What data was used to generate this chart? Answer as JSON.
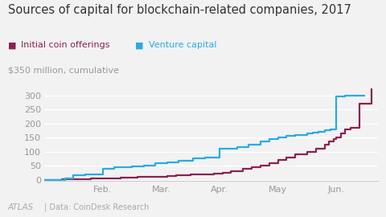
{
  "title": "Sources of capital for blockchain-related companies, 2017",
  "ylabel": "$350 million, cumulative",
  "legend_ico": "Initial coin offerings",
  "legend_vc": "Venture capital",
  "footer": "Data: CoinDesk Research",
  "atlas_label": "ATLAS",
  "ico_color": "#8B2252",
  "vc_color": "#29ABE2",
  "background_color": "#f2f2f2",
  "title_fontsize": 10.5,
  "ylim": [
    -5,
    350
  ],
  "yticks": [
    0,
    50,
    100,
    150,
    200,
    250,
    300
  ],
  "xtick_labels": [
    "Feb.",
    "Mar.",
    "Apr.",
    "May",
    "Jun."
  ],
  "ico_x": [
    1.0,
    1.3,
    1.55,
    1.8,
    2.0,
    2.3,
    2.6,
    2.9,
    3.1,
    3.25,
    3.5,
    3.7,
    3.9,
    4.05,
    4.2,
    4.4,
    4.55,
    4.7,
    4.85,
    5.0,
    5.15,
    5.3,
    5.5,
    5.65,
    5.8,
    5.88,
    5.95,
    6.0,
    6.08,
    6.15,
    6.25,
    6.4,
    6.6
  ],
  "ico_y": [
    0,
    1,
    2,
    4,
    6,
    8,
    10,
    12,
    14,
    16,
    18,
    20,
    22,
    25,
    30,
    40,
    45,
    50,
    60,
    70,
    80,
    90,
    100,
    110,
    125,
    135,
    145,
    150,
    165,
    180,
    185,
    270,
    325
  ],
  "vc_x": [
    1.0,
    1.35,
    1.5,
    1.7,
    2.0,
    2.2,
    2.5,
    2.7,
    2.9,
    3.1,
    3.3,
    3.55,
    3.75,
    4.0,
    4.15,
    4.3,
    4.5,
    4.7,
    4.85,
    5.0,
    5.15,
    5.3,
    5.5,
    5.6,
    5.7,
    5.8,
    5.9,
    6.0,
    6.15,
    6.5
  ],
  "vc_y": [
    0,
    5,
    15,
    20,
    40,
    45,
    47,
    52,
    58,
    62,
    68,
    75,
    80,
    110,
    112,
    115,
    125,
    135,
    145,
    150,
    155,
    160,
    165,
    168,
    170,
    175,
    180,
    295,
    298,
    300
  ]
}
